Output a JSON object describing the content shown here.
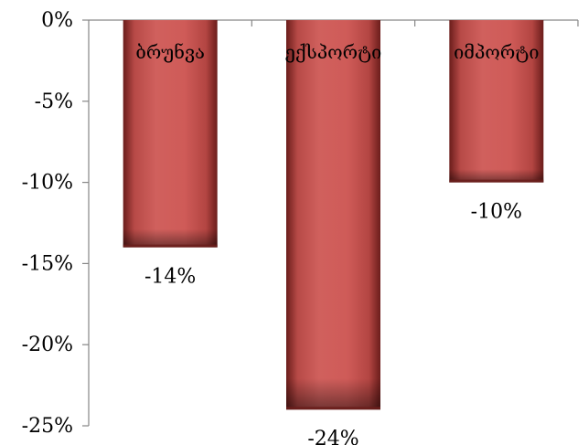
{
  "chart_data": {
    "type": "bar",
    "categories": [
      "ბრუნვა",
      "ექსპორტი",
      "იმპორტი"
    ],
    "values": [
      -14,
      -24,
      -10
    ],
    "value_labels": [
      "-14%",
      "-24%",
      "-10%"
    ],
    "y_ticks": [
      0,
      -5,
      -10,
      -15,
      -20,
      -25
    ],
    "y_tick_labels": [
      "0%",
      "-5%",
      "-10%",
      "-15%",
      "-20%",
      "-25%"
    ],
    "ylim": [
      -25,
      0
    ],
    "grid": false,
    "legend": "none",
    "bar_color": "#c0504d",
    "bar_highlight": "#de7a77",
    "bar_shadow": "#6b1d1b"
  }
}
